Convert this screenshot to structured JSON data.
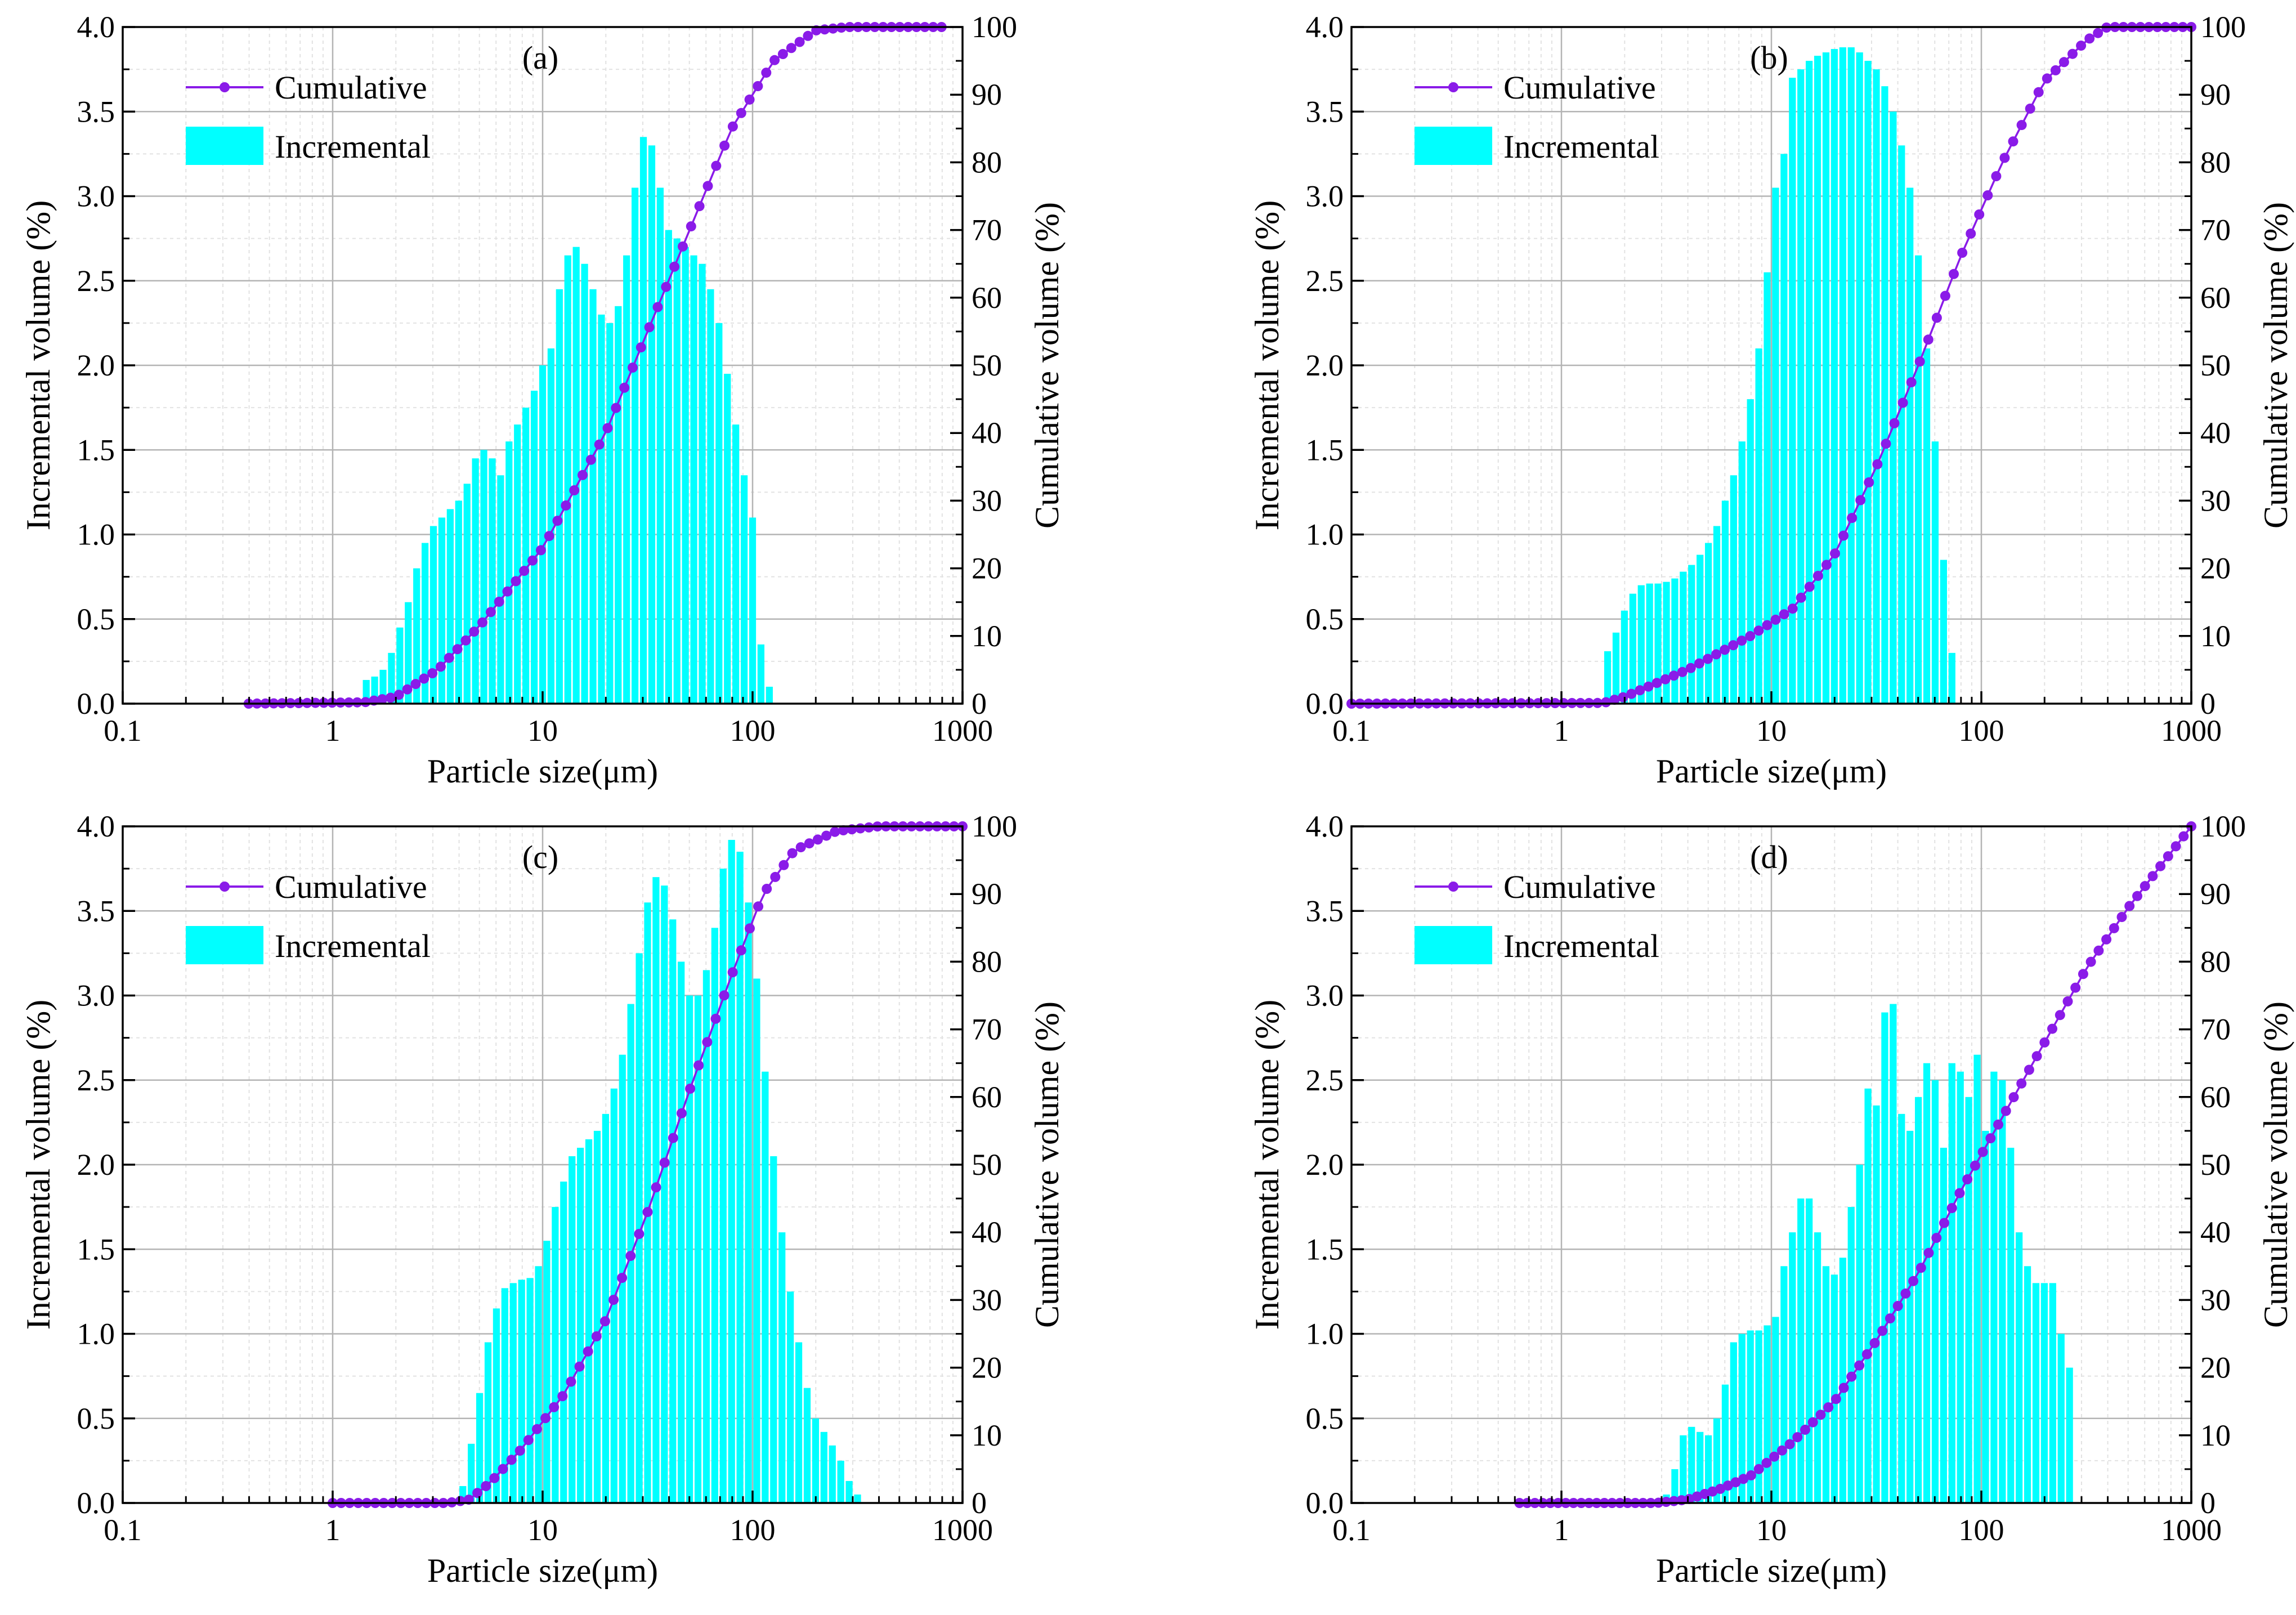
{
  "figure": {
    "colors": {
      "bar": "#00ffff",
      "line": "#8a1be8",
      "grid_major": "#b4b4b4",
      "grid_minor": "#e2e2e2",
      "axis": "#000000"
    },
    "legend": {
      "line_label": "Cumulative",
      "bar_label": "Incremental"
    }
  },
  "chart_data": [
    {
      "type": "bar+line",
      "panel_label": "(a)",
      "xlabel": "Particle size(μm)",
      "ylabel_left": "Incremental volume (%)",
      "ylabel_right": "Cumulative volume (%)",
      "xscale": "log",
      "xlim": [
        0.1,
        1000
      ],
      "ylim_left": [
        0,
        4.0
      ],
      "ylim_right": [
        0,
        100
      ],
      "xticks": [
        "0.1",
        "1",
        "10",
        "100",
        "1000"
      ],
      "yticks_left": [
        "0.0",
        "0.5",
        "1.0",
        "1.5",
        "2.0",
        "2.5",
        "3.0",
        "3.5",
        "4.0"
      ],
      "yticks_right": [
        "0",
        "10",
        "20",
        "30",
        "40",
        "50",
        "60",
        "70",
        "80",
        "90",
        "100"
      ],
      "legend_position": "top-left",
      "incremental": {
        "name": "Incremental",
        "log10_start": 0.14,
        "log10_step": 0.04,
        "values": [
          0.14,
          0.16,
          0.2,
          0.3,
          0.45,
          0.6,
          0.8,
          0.95,
          1.05,
          1.1,
          1.15,
          1.2,
          1.3,
          1.45,
          1.5,
          1.45,
          1.35,
          1.55,
          1.65,
          1.75,
          1.85,
          2.0,
          2.1,
          2.45,
          2.65,
          2.7,
          2.6,
          2.45,
          2.3,
          2.25,
          2.35,
          2.65,
          3.05,
          3.35,
          3.3,
          3.05,
          2.8,
          2.75,
          2.7,
          2.65,
          2.6,
          2.45,
          2.25,
          1.95,
          1.65,
          1.35,
          1.1,
          0.35,
          0.1
        ]
      },
      "cumulative": {
        "name": "Cumulative",
        "log10_start": -0.4,
        "log10_end": 2.9,
        "points": 84,
        "anchors": [
          [
            -0.4,
            0
          ],
          [
            0.15,
            0.2
          ],
          [
            0.3,
            1
          ],
          [
            0.5,
            5
          ],
          [
            0.7,
            11.5
          ],
          [
            1.0,
            23
          ],
          [
            1.3,
            40
          ],
          [
            1.5,
            55
          ],
          [
            1.7,
            70
          ],
          [
            1.9,
            85
          ],
          [
            2.1,
            95
          ],
          [
            2.3,
            99.5
          ],
          [
            2.45,
            100
          ],
          [
            2.9,
            100
          ]
        ]
      }
    },
    {
      "type": "bar+line",
      "panel_label": "(b)",
      "xlabel": "Particle size(μm)",
      "ylabel_left": "Incremental volume (%)",
      "ylabel_right": "Cumulative volume (%)",
      "xscale": "log",
      "xlim": [
        0.1,
        1000
      ],
      "ylim_left": [
        0,
        4.0
      ],
      "ylim_right": [
        0,
        100
      ],
      "xticks": [
        "0.1",
        "1",
        "10",
        "100",
        "1000"
      ],
      "yticks_left": [
        "0.0",
        "0.5",
        "1.0",
        "1.5",
        "2.0",
        "2.5",
        "3.0",
        "3.5",
        "4.0"
      ],
      "yticks_right": [
        "0",
        "10",
        "20",
        "30",
        "40",
        "50",
        "60",
        "70",
        "80",
        "90",
        "100"
      ],
      "legend_position": "top-left",
      "incremental": {
        "name": "Incremental",
        "log10_start": 0.2,
        "log10_step": 0.04,
        "values": [
          0.31,
          0.42,
          0.55,
          0.65,
          0.7,
          0.71,
          0.71,
          0.72,
          0.74,
          0.78,
          0.82,
          0.88,
          0.95,
          1.05,
          1.2,
          1.35,
          1.55,
          1.8,
          2.1,
          2.55,
          3.05,
          3.25,
          3.7,
          3.75,
          3.8,
          3.83,
          3.85,
          3.87,
          3.88,
          3.88,
          3.85,
          3.8,
          3.75,
          3.65,
          3.5,
          3.3,
          3.05,
          2.65,
          2.1,
          1.55,
          0.85,
          0.3
        ]
      },
      "cumulative": {
        "name": "Cumulative",
        "log10_start": -1.0,
        "log10_end": 3.0,
        "points": 100,
        "anchors": [
          [
            -1,
            0
          ],
          [
            0.2,
            0.1
          ],
          [
            0.3,
            1
          ],
          [
            0.6,
            5
          ],
          [
            0.9,
            10
          ],
          [
            1.1,
            14
          ],
          [
            1.3,
            22
          ],
          [
            1.5,
            35
          ],
          [
            1.7,
            50
          ],
          [
            1.9,
            66
          ],
          [
            2.1,
            80
          ],
          [
            2.3,
            92
          ],
          [
            2.5,
            98
          ],
          [
            2.6,
            100
          ],
          [
            3.0,
            100
          ]
        ]
      }
    },
    {
      "type": "bar+line",
      "panel_label": "(c)",
      "xlabel": "Particle size(μm)",
      "ylabel_left": "Incremental volume (%)",
      "ylabel_right": "Cumulative volume (%)",
      "xscale": "log",
      "xlim": [
        0.1,
        1000
      ],
      "ylim_left": [
        0,
        4.0
      ],
      "ylim_right": [
        0,
        100
      ],
      "xticks": [
        "0.1",
        "1",
        "10",
        "100",
        "1000"
      ],
      "yticks_left": [
        "0.0",
        "0.5",
        "1.0",
        "1.5",
        "2.0",
        "2.5",
        "3.0",
        "3.5",
        "4.0"
      ],
      "yticks_right": [
        "0",
        "10",
        "20",
        "30",
        "40",
        "50",
        "60",
        "70",
        "80",
        "90",
        "100"
      ],
      "legend_position": "top-left",
      "incremental": {
        "name": "Incremental",
        "log10_start": 0.6,
        "log10_step": 0.04,
        "values": [
          0.1,
          0.35,
          0.65,
          0.95,
          1.15,
          1.27,
          1.3,
          1.32,
          1.33,
          1.4,
          1.55,
          1.75,
          1.9,
          2.05,
          2.1,
          2.15,
          2.2,
          2.3,
          2.45,
          2.65,
          2.95,
          3.25,
          3.55,
          3.7,
          3.65,
          3.45,
          3.2,
          3.0,
          3.0,
          3.15,
          3.4,
          3.75,
          3.92,
          3.85,
          3.55,
          3.1,
          2.55,
          2.05,
          1.6,
          1.25,
          0.95,
          0.68,
          0.5,
          0.42,
          0.34,
          0.25,
          0.13,
          0.05
        ]
      },
      "cumulative": {
        "name": "Cumulative",
        "log10_start": 0.0,
        "log10_end": 3.0,
        "points": 75,
        "anchors": [
          [
            0,
            0
          ],
          [
            0.55,
            0
          ],
          [
            0.65,
            0.5
          ],
          [
            0.75,
            3
          ],
          [
            0.9,
            8
          ],
          [
            1.1,
            16
          ],
          [
            1.3,
            27
          ],
          [
            1.5,
            43
          ],
          [
            1.7,
            61
          ],
          [
            1.9,
            78
          ],
          [
            2.05,
            90
          ],
          [
            2.2,
            96.5
          ],
          [
            2.4,
            99.3
          ],
          [
            2.6,
            100
          ],
          [
            3.0,
            100
          ]
        ]
      }
    },
    {
      "type": "bar+line",
      "panel_label": "(d)",
      "xlabel": "Particle size(μm)",
      "ylabel_left": "Incremental volume (%)",
      "ylabel_right": "Cumulative volume (%)",
      "xscale": "log",
      "xlim": [
        0.1,
        1000
      ],
      "ylim_left": [
        0,
        4.0
      ],
      "ylim_right": [
        0,
        100
      ],
      "xticks": [
        "0.1",
        "1",
        "10",
        "100",
        "1000"
      ],
      "yticks_left": [
        "0.0",
        "0.5",
        "1.0",
        "1.5",
        "2.0",
        "2.5",
        "3.0",
        "3.5",
        "4.0"
      ],
      "yticks_right": [
        "0",
        "10",
        "20",
        "30",
        "40",
        "50",
        "60",
        "70",
        "80",
        "90",
        "100"
      ],
      "legend_position": "top-left",
      "incremental": {
        "name": "Incremental",
        "log10_start": 0.48,
        "log10_step": 0.04,
        "values": [
          0.05,
          0.2,
          0.4,
          0.45,
          0.42,
          0.4,
          0.5,
          0.7,
          0.95,
          1.0,
          1.02,
          1.02,
          1.05,
          1.1,
          1.4,
          1.6,
          1.8,
          1.8,
          1.6,
          1.4,
          1.35,
          1.45,
          1.75,
          2.0,
          2.45,
          2.35,
          2.9,
          2.95,
          2.3,
          2.2,
          2.4,
          2.6,
          2.5,
          2.1,
          2.6,
          2.55,
          2.4,
          2.65,
          2.2,
          2.55,
          2.5,
          2.1,
          1.6,
          1.4,
          1.3,
          1.3,
          1.3,
          1.0,
          0.8
        ]
      },
      "cumulative": {
        "name": "Cumulative",
        "log10_start": -0.2,
        "log10_end": 3.0,
        "points": 88,
        "anchors": [
          [
            -0.2,
            0
          ],
          [
            0.45,
            0
          ],
          [
            0.6,
            0.5
          ],
          [
            0.75,
            2
          ],
          [
            0.9,
            4
          ],
          [
            1.1,
            9
          ],
          [
            1.3,
            15
          ],
          [
            1.5,
            24
          ],
          [
            1.7,
            34
          ],
          [
            1.9,
            46
          ],
          [
            2.1,
            57
          ],
          [
            2.3,
            68
          ],
          [
            2.5,
            79
          ],
          [
            2.7,
            88
          ],
          [
            2.9,
            96
          ],
          [
            3.0,
            100
          ]
        ]
      }
    }
  ]
}
